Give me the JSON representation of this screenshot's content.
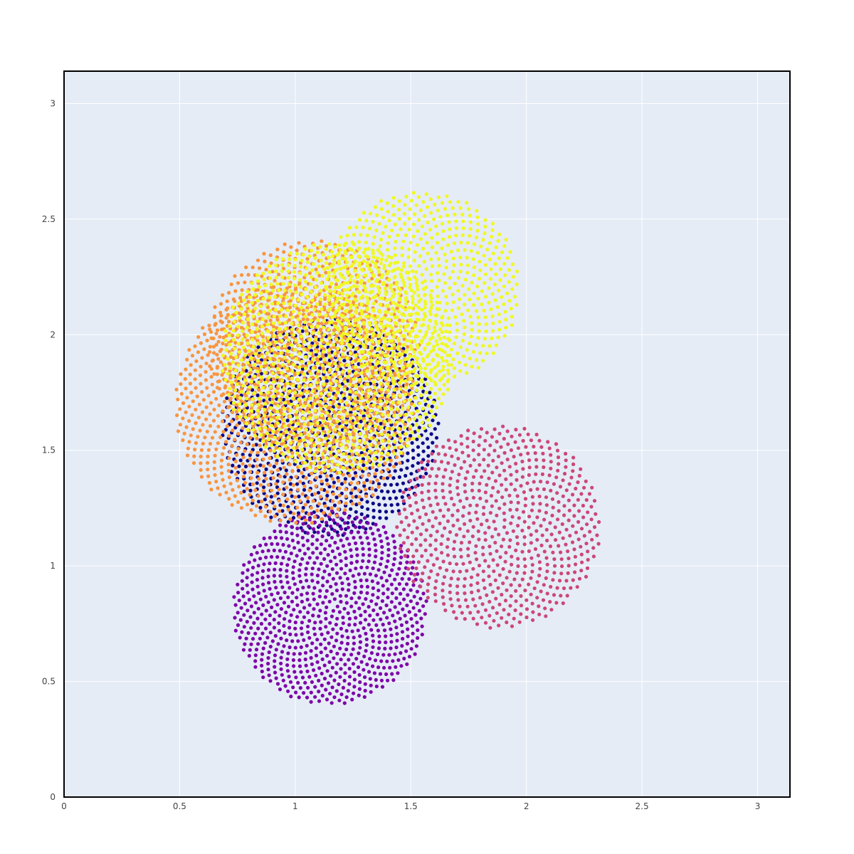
{
  "chart_data": {
    "type": "scatter",
    "title": "",
    "xlabel": "",
    "ylabel": "",
    "xlim": [
      0,
      3.14
    ],
    "ylim": [
      0,
      3.14
    ],
    "xticks": [
      0,
      0.5,
      1,
      1.5,
      2,
      2.5,
      3
    ],
    "yticks": [
      0,
      0.5,
      1,
      1.5,
      2,
      2.5,
      3
    ],
    "xtick_labels": [
      "0",
      "0.5",
      "1",
      "1.5",
      "2",
      "2.5",
      "3"
    ],
    "ytick_labels": [
      "0",
      "0.5",
      "1",
      "1.5",
      "2",
      "2.5",
      "3"
    ],
    "grid": true,
    "legend": "none",
    "plot_background": "#e5ecf6",
    "grid_color": "#ffffff",
    "point_pattern": "sunflower spiral (golden angle) discs",
    "series": [
      {
        "color": "#0d0887",
        "center": [
          1.15,
          1.6
        ],
        "radius": 0.47,
        "points": 900
      },
      {
        "color": "#7e03a8",
        "center": [
          1.15,
          0.82
        ],
        "radius": 0.42,
        "points": 800
      },
      {
        "color": "#cc4778",
        "center": [
          1.88,
          1.17
        ],
        "radius": 0.44,
        "points": 650
      },
      {
        "color": "#f89540",
        "center": [
          1.0,
          1.7
        ],
        "radius": 0.52,
        "points": 1000
      },
      {
        "color": "#f89540",
        "center": [
          1.08,
          1.95
        ],
        "radius": 0.46,
        "points": 700
      },
      {
        "color": "#f0f921",
        "center": [
          1.18,
          1.9
        ],
        "radius": 0.5,
        "points": 1100
      },
      {
        "color": "#f0f921",
        "center": [
          1.55,
          2.2
        ],
        "radius": 0.42,
        "points": 600
      }
    ]
  }
}
